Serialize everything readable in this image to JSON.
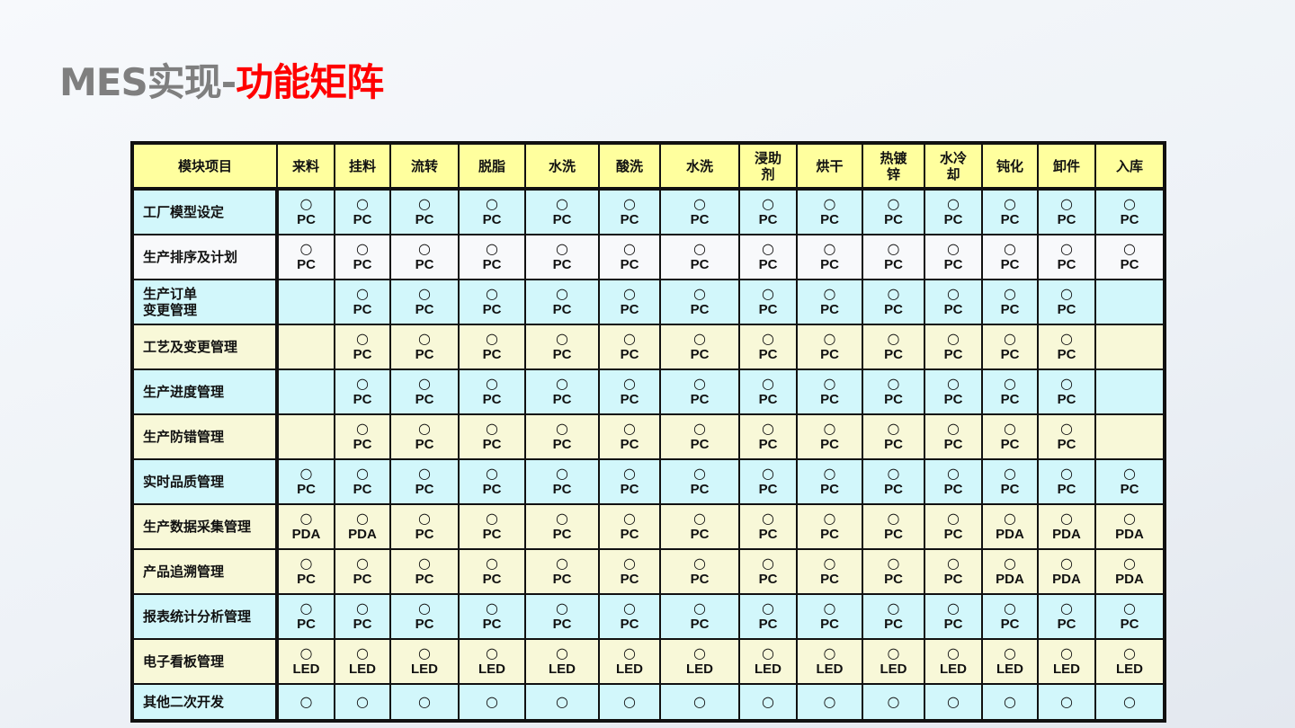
{
  "title": {
    "prefix": "MES实现-",
    "highlight": "功能矩阵"
  },
  "table": {
    "headers": [
      "模块项目",
      "来料",
      "挂料",
      "流转",
      "脱脂",
      "水洗",
      "酸洗",
      "水洗",
      "浸助\n剂",
      "烘干",
      "热镀\n锌",
      "水冷\n却",
      "钝化",
      "卸件",
      "入库"
    ],
    "mark": "○",
    "rows": [
      {
        "label": "工厂模型设定",
        "color": "cyan",
        "cells": [
          "PC",
          "PC",
          "PC",
          "PC",
          "PC",
          "PC",
          "PC",
          "PC",
          "PC",
          "PC",
          "PC",
          "PC",
          "PC",
          "PC"
        ]
      },
      {
        "label": "生产排序及计划",
        "color": "white",
        "cells": [
          "PC",
          "PC",
          "PC",
          "PC",
          "PC",
          "PC",
          "PC",
          "PC",
          "PC",
          "PC",
          "PC",
          "PC",
          "PC",
          "PC"
        ]
      },
      {
        "label": "生产订单\n变更管理",
        "color": "cyan",
        "cells": [
          null,
          "PC",
          "PC",
          "PC",
          "PC",
          "PC",
          "PC",
          "PC",
          "PC",
          "PC",
          "PC",
          "PC",
          "PC",
          null
        ]
      },
      {
        "label": "工艺及变更管理",
        "color": "yellow",
        "cells": [
          null,
          "PC",
          "PC",
          "PC",
          "PC",
          "PC",
          "PC",
          "PC",
          "PC",
          "PC",
          "PC",
          "PC",
          "PC",
          null
        ]
      },
      {
        "label": "生产进度管理",
        "color": "cyan",
        "cells": [
          null,
          "PC",
          "PC",
          "PC",
          "PC",
          "PC",
          "PC",
          "PC",
          "PC",
          "PC",
          "PC",
          "PC",
          "PC",
          null
        ]
      },
      {
        "label": "生产防错管理",
        "color": "yellow",
        "cells": [
          null,
          "PC",
          "PC",
          "PC",
          "PC",
          "PC",
          "PC",
          "PC",
          "PC",
          "PC",
          "PC",
          "PC",
          "PC",
          null
        ]
      },
      {
        "label": "实时品质管理",
        "color": "cyan",
        "cells": [
          "PC",
          "PC",
          "PC",
          "PC",
          "PC",
          "PC",
          "PC",
          "PC",
          "PC",
          "PC",
          "PC",
          "PC",
          "PC",
          "PC"
        ]
      },
      {
        "label": "生产数据采集管理",
        "color": "yellow",
        "cells": [
          "PDA",
          "PDA",
          "PC",
          "PC",
          "PC",
          "PC",
          "PC",
          "PC",
          "PC",
          "PC",
          "PC",
          "PDA",
          "PDA",
          "PDA"
        ]
      },
      {
        "label": "产品追溯管理",
        "color": "yellow",
        "cells": [
          "PC",
          "PC",
          "PC",
          "PC",
          "PC",
          "PC",
          "PC",
          "PC",
          "PC",
          "PC",
          "PC",
          "PDA",
          "PDA",
          "PDA"
        ]
      },
      {
        "label": "报表统计分析管理",
        "color": "cyan",
        "cells": [
          "PC",
          "PC",
          "PC",
          "PC",
          "PC",
          "PC",
          "PC",
          "PC",
          "PC",
          "PC",
          "PC",
          "PC",
          "PC",
          "PC"
        ]
      },
      {
        "label": "电子看板管理",
        "color": "yellow",
        "cells": [
          "LED",
          "LED",
          "LED",
          "LED",
          "LED",
          "LED",
          "LED",
          "LED",
          "LED",
          "LED",
          "LED",
          "LED",
          "LED",
          "LED"
        ]
      },
      {
        "label": "其他二次开发",
        "color": "cyan",
        "cells": [
          "",
          "",
          "",
          "",
          "",
          "",
          "",
          "",
          "",
          "",
          "",
          "",
          "",
          ""
        ]
      }
    ]
  },
  "colors": {
    "header": "#ffff9e",
    "cyan": "#d2f7fb",
    "yellow": "#f8f8d8",
    "white": "#f8f9fb",
    "title_gray": "#7f7f7f",
    "title_red": "#ff0000"
  }
}
